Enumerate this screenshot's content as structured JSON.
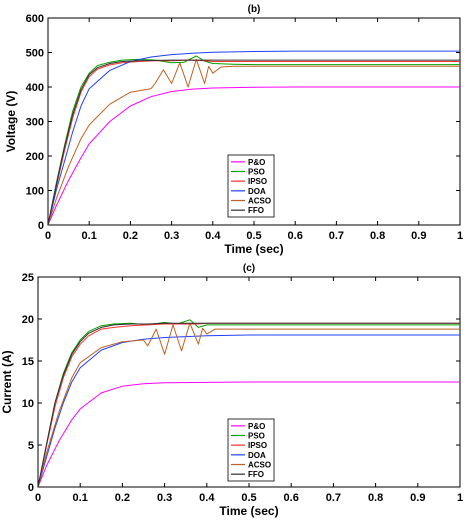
{
  "chart_data": [
    {
      "type": "line",
      "title": "(b)",
      "xlabel": "Time (sec)",
      "ylabel": "Voltage (V)",
      "xlim": [
        0,
        1
      ],
      "ylim": [
        0,
        600
      ],
      "xticks": [
        0,
        0.1,
        0.2,
        0.3,
        0.4,
        0.5,
        0.6,
        0.7,
        0.8,
        0.9,
        1
      ],
      "xtick_labels": [
        "0",
        "0.1",
        "0.2",
        "0.3",
        "0.4",
        "0.5",
        "0.6",
        "0.7",
        "0.8",
        "0.9",
        "1"
      ],
      "yticks": [
        0,
        100,
        200,
        300,
        400,
        500,
        600
      ],
      "ytick_labels": [
        "0",
        "100",
        "200",
        "300",
        "400",
        "500",
        "600"
      ],
      "grid": false,
      "legend_position": "center-bottom",
      "series": [
        {
          "name": "P&O",
          "color": "#ff00ff",
          "x": [
            0,
            0.02,
            0.05,
            0.08,
            0.1,
            0.15,
            0.2,
            0.25,
            0.3,
            0.35,
            0.4,
            0.5,
            0.6,
            0.8,
            1.0
          ],
          "y": [
            0,
            55,
            130,
            195,
            235,
            300,
            345,
            372,
            387,
            394,
            397,
            399,
            400,
            400,
            400
          ]
        },
        {
          "name": "PSO",
          "color": "#00a000",
          "x": [
            0,
            0.02,
            0.04,
            0.06,
            0.08,
            0.1,
            0.12,
            0.15,
            0.18,
            0.22,
            0.26,
            0.3,
            0.33,
            0.36,
            0.38,
            0.4,
            0.45,
            0.5,
            0.7,
            1.0
          ],
          "y": [
            0,
            120,
            230,
            330,
            400,
            440,
            462,
            472,
            478,
            480,
            478,
            470,
            472,
            490,
            475,
            468,
            466,
            465,
            465,
            465
          ]
        },
        {
          "name": "IPSO",
          "color": "#ff3030",
          "x": [
            0,
            0.02,
            0.04,
            0.06,
            0.08,
            0.1,
            0.12,
            0.15,
            0.18,
            0.22,
            0.26,
            0.3,
            0.34,
            0.38,
            0.4,
            0.45,
            0.5,
            0.7,
            1.0
          ],
          "y": [
            0,
            110,
            215,
            310,
            385,
            430,
            452,
            464,
            470,
            474,
            476,
            476,
            478,
            476,
            474,
            474,
            474,
            474,
            474
          ]
        },
        {
          "name": "DOA",
          "color": "#2040ff",
          "x": [
            0,
            0.02,
            0.04,
            0.06,
            0.08,
            0.1,
            0.15,
            0.2,
            0.25,
            0.3,
            0.35,
            0.4,
            0.5,
            0.6,
            0.8,
            1.0
          ],
          "y": [
            0,
            100,
            185,
            270,
            345,
            395,
            448,
            474,
            487,
            494,
            498,
            501,
            503,
            504,
            504,
            504
          ]
        },
        {
          "name": "ACSO",
          "color": "#c06020",
          "x": [
            0,
            0.02,
            0.05,
            0.08,
            0.1,
            0.15,
            0.2,
            0.25,
            0.26,
            0.28,
            0.3,
            0.32,
            0.34,
            0.36,
            0.38,
            0.39,
            0.4,
            0.42,
            0.45,
            0.5,
            0.7,
            1.0
          ],
          "y": [
            0,
            75,
            170,
            250,
            290,
            350,
            385,
            395,
            410,
            450,
            410,
            470,
            400,
            480,
            410,
            460,
            440,
            458,
            460,
            460,
            460,
            460
          ]
        },
        {
          "name": "FFO",
          "color": "#303030",
          "x": [
            0,
            0.02,
            0.04,
            0.06,
            0.08,
            0.1,
            0.12,
            0.15,
            0.18,
            0.22,
            0.26,
            0.3,
            0.35,
            0.4,
            0.5,
            0.7,
            1.0
          ],
          "y": [
            0,
            115,
            225,
            320,
            392,
            436,
            456,
            468,
            474,
            476,
            477,
            478,
            478,
            478,
            478,
            478,
            478
          ]
        }
      ]
    },
    {
      "type": "line",
      "title": "(c)",
      "xlabel": "Time (sec)",
      "ylabel": "Current (A)",
      "xlim": [
        0,
        1
      ],
      "ylim": [
        0,
        25
      ],
      "xticks": [
        0,
        0.1,
        0.2,
        0.3,
        0.4,
        0.5,
        0.6,
        0.7,
        0.8,
        0.9,
        1
      ],
      "xtick_labels": [
        "0",
        "0.1",
        "0.2",
        "0.3",
        "0.4",
        "0.5",
        "0.6",
        "0.7",
        "0.8",
        "0.9",
        "1"
      ],
      "yticks": [
        0,
        5,
        10,
        15,
        20,
        25
      ],
      "ytick_labels": [
        "0",
        "5",
        "10",
        "15",
        "20",
        "25"
      ],
      "grid": false,
      "legend_position": "center-bottom",
      "series": [
        {
          "name": "P&O",
          "color": "#ff00ff",
          "x": [
            0,
            0.02,
            0.05,
            0.08,
            0.1,
            0.15,
            0.2,
            0.25,
            0.3,
            0.4,
            0.5,
            0.7,
            1.0
          ],
          "y": [
            0,
            2.5,
            5.5,
            8.0,
            9.3,
            11.2,
            12.0,
            12.3,
            12.4,
            12.45,
            12.5,
            12.5,
            12.5
          ]
        },
        {
          "name": "PSO",
          "color": "#00a000",
          "x": [
            0,
            0.02,
            0.04,
            0.06,
            0.08,
            0.1,
            0.12,
            0.15,
            0.18,
            0.22,
            0.26,
            0.3,
            0.33,
            0.36,
            0.38,
            0.4,
            0.45,
            0.5,
            0.7,
            1.0
          ],
          "y": [
            0,
            5,
            10,
            13.5,
            16,
            17.5,
            18.5,
            19.2,
            19.4,
            19.5,
            19.3,
            19.6,
            19.4,
            19.9,
            19.0,
            19.3,
            19.3,
            19.3,
            19.3,
            19.3
          ]
        },
        {
          "name": "IPSO",
          "color": "#ff3030",
          "x": [
            0,
            0.02,
            0.04,
            0.06,
            0.08,
            0.1,
            0.12,
            0.15,
            0.18,
            0.22,
            0.26,
            0.3,
            0.34,
            0.38,
            0.4,
            0.45,
            0.5,
            0.7,
            1.0
          ],
          "y": [
            0,
            4.8,
            9.5,
            13,
            15.5,
            17,
            18,
            18.8,
            19.0,
            19.2,
            19.3,
            19.4,
            19.4,
            19.4,
            19.5,
            19.5,
            19.5,
            19.5,
            19.5
          ]
        },
        {
          "name": "DOA",
          "color": "#2040ff",
          "x": [
            0,
            0.02,
            0.04,
            0.06,
            0.08,
            0.1,
            0.15,
            0.2,
            0.25,
            0.3,
            0.35,
            0.4,
            0.5,
            0.6,
            0.8,
            1.0
          ],
          "y": [
            0,
            3.5,
            7,
            10,
            12.5,
            14.2,
            16.3,
            17.2,
            17.6,
            17.8,
            17.9,
            18.0,
            18.1,
            18.1,
            18.1,
            18.1
          ]
        },
        {
          "name": "ACSO",
          "color": "#c06020",
          "x": [
            0,
            0.02,
            0.05,
            0.08,
            0.1,
            0.15,
            0.2,
            0.25,
            0.26,
            0.28,
            0.3,
            0.32,
            0.34,
            0.36,
            0.38,
            0.39,
            0.4,
            0.42,
            0.45,
            0.5,
            0.7,
            1.0
          ],
          "y": [
            0,
            4,
            9,
            13,
            14.8,
            16.6,
            17.3,
            17.5,
            16.8,
            18.8,
            15.8,
            19.3,
            16.2,
            19.5,
            17.0,
            18.9,
            18.2,
            18.8,
            18.8,
            18.8,
            18.8,
            18.8
          ]
        },
        {
          "name": "FFO",
          "color": "#303030",
          "x": [
            0,
            0.02,
            0.04,
            0.06,
            0.08,
            0.1,
            0.12,
            0.15,
            0.18,
            0.22,
            0.26,
            0.3,
            0.35,
            0.4,
            0.5,
            0.7,
            1.0
          ],
          "y": [
            0,
            5,
            10,
            13.3,
            15.8,
            17.3,
            18.3,
            19.0,
            19.3,
            19.4,
            19.4,
            19.5,
            19.5,
            19.5,
            19.5,
            19.5,
            19.5
          ]
        }
      ]
    }
  ]
}
